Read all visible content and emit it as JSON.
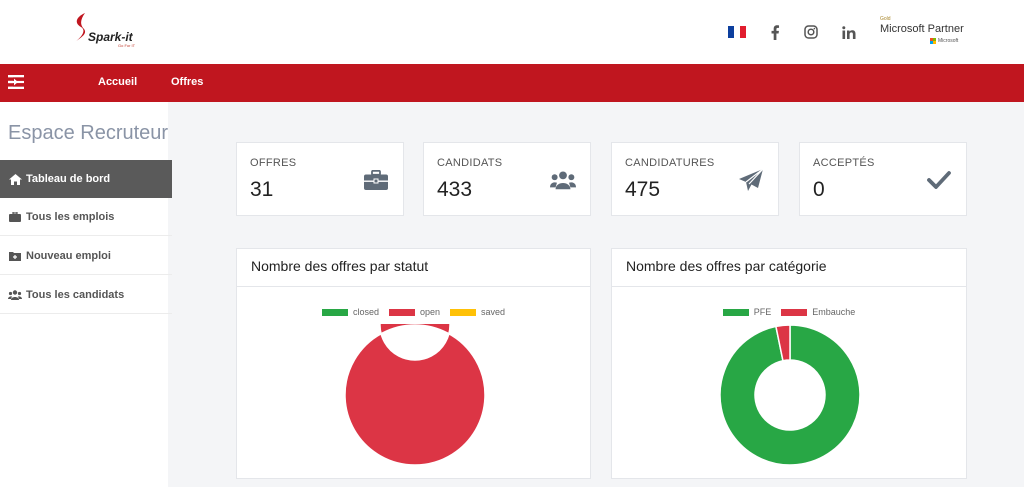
{
  "header": {
    "logo_text": "Spark-it",
    "logo_tagline": "Go For IT",
    "partner_badge": {
      "tier": "Gold",
      "title": "Microsoft Partner",
      "company": "Microsoft"
    },
    "social_icons": [
      "facebook-icon",
      "instagram-icon",
      "linkedin-icon"
    ],
    "language_flag": "fr-flag-icon"
  },
  "nav": {
    "toggle_icon": "menu-toggle-icon",
    "links": [
      "Accueil",
      "Offres"
    ]
  },
  "sidebar": {
    "title": "Espace Recruteur",
    "items": [
      {
        "label": "Tableau de bord",
        "icon": "home-icon",
        "active": true
      },
      {
        "label": "Tous les emplois",
        "icon": "briefcase-icon",
        "active": false
      },
      {
        "label": "Nouveau emploi",
        "icon": "folder-plus-icon",
        "active": false
      },
      {
        "label": "Tous les candidats",
        "icon": "users-icon",
        "active": false
      }
    ]
  },
  "stats": [
    {
      "label": "OFFRES",
      "value": "31",
      "icon": "briefcase-icon"
    },
    {
      "label": "CANDIDATS",
      "value": "433",
      "icon": "users-icon"
    },
    {
      "label": "CANDIDATURES",
      "value": "475",
      "icon": "paper-plane-icon"
    },
    {
      "label": "ACCEPTÉS",
      "value": "0",
      "icon": "check-icon"
    }
  ],
  "colors": {
    "brand_red": "#c0161f",
    "green": "#28a745",
    "red": "#dc3545",
    "yellow": "#ffc107"
  },
  "chart_data": [
    {
      "type": "pie",
      "title": "Nombre des offres par statut",
      "categories": [
        "closed",
        "open",
        "saved"
      ],
      "values": [
        0,
        31,
        0
      ],
      "colors": [
        "#28a745",
        "#dc3545",
        "#ffc107"
      ],
      "legend": "top"
    },
    {
      "type": "pie",
      "title": "Nombre des offres par catégorie",
      "categories": [
        "PFE",
        "Embauche"
      ],
      "values": [
        30,
        1
      ],
      "colors": [
        "#28a745",
        "#dc3545"
      ],
      "legend": "top"
    }
  ]
}
